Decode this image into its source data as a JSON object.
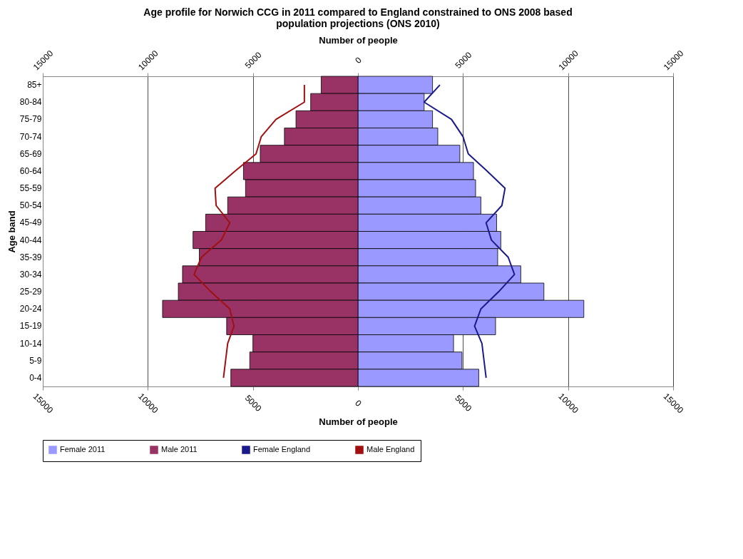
{
  "chart_data": {
    "type": "bar",
    "orientation": "horizontal",
    "title": "Age profile for Norwich CCG in 2011 compared to England constrained to ONS 2008 based population projections (ONS 2010)",
    "xlabel": "Number of people",
    "x2label": "Number of people",
    "ylabel": "Age band",
    "categories": [
      "85+",
      "80-84",
      "75-79",
      "70-74",
      "65-69",
      "60-64",
      "55-59",
      "50-54",
      "45-49",
      "40-44",
      "35-39",
      "30-34",
      "25-29",
      "20-24",
      "15-19",
      "10-14",
      "5-9",
      "0-4"
    ],
    "series": [
      {
        "name": "Female 2011",
        "color": "#9999ff",
        "values": [
          3550,
          3150,
          3550,
          3800,
          4850,
          5500,
          5600,
          5850,
          6600,
          6800,
          6650,
          7750,
          8850,
          10750,
          6550,
          4550,
          4950,
          5750
        ]
      },
      {
        "name": "Male 2011",
        "color": "#993366",
        "values": [
          -1750,
          -2250,
          -2950,
          -3500,
          -4650,
          -5450,
          -5350,
          -6200,
          -7250,
          -7850,
          -7550,
          -8350,
          -8550,
          -9300,
          -6250,
          -5000,
          -5150,
          -6050
        ]
      },
      {
        "name": "Female England",
        "type": "line",
        "color": "#1a1a8c",
        "values": [
          3900,
          3150,
          4450,
          5000,
          5250,
          6150,
          7000,
          6850,
          6100,
          6350,
          7150,
          7450,
          6700,
          5850,
          5550,
          5900,
          6000,
          6100
        ]
      },
      {
        "name": "Male England",
        "type": "line",
        "color": "#a01010",
        "values": [
          -2550,
          -2550,
          -3900,
          -4600,
          -4850,
          -5850,
          -6800,
          -6750,
          -6100,
          -6500,
          -7450,
          -7800,
          -7000,
          -6100,
          -5900,
          -6200,
          -6300,
          -6400
        ]
      }
    ],
    "xlim": [
      -15000,
      15000
    ],
    "xticks": [
      {
        "value": -15000,
        "label": "15000"
      },
      {
        "value": -10000,
        "label": "10000"
      },
      {
        "value": -5000,
        "label": "5000"
      },
      0,
      5000,
      10000,
      15000
    ],
    "x2lim": [
      -15000,
      15000
    ],
    "x2ticks": [
      {
        "value": -15000,
        "label": "15000"
      },
      {
        "value": -10000,
        "label": "10000"
      },
      {
        "value": -5000,
        "label": "5000"
      },
      0,
      5000,
      10000,
      15000
    ],
    "stacked": true,
    "grid": "x",
    "legend": "bottom",
    "marker": "none",
    "line_style": "solid"
  }
}
